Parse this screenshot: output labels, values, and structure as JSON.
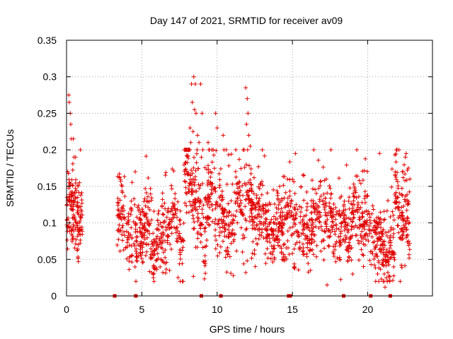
{
  "chart_data": {
    "type": "scatter",
    "title": "Day 147 of 2021, SRMTID for receiver av09",
    "xlabel": "GPS time / hours",
    "ylabel": "SRMTID / TECUs",
    "xlim": [
      0,
      24.3
    ],
    "ylim": [
      0,
      0.35
    ],
    "x_ticks": [
      0,
      5,
      10,
      15,
      20
    ],
    "x_tick_labels": [
      "0",
      "5",
      "10",
      "15",
      "20"
    ],
    "y_ticks": [
      0,
      0.05,
      0.1,
      0.15,
      0.2,
      0.25,
      0.3,
      0.35
    ],
    "y_tick_labels": [
      "0",
      "0.05",
      "0.1",
      "0.15",
      "0.2",
      "0.25",
      "0.3",
      "0.35"
    ],
    "grid": true,
    "marker": "+",
    "colors": {
      "points": "#e00000",
      "axis": "#000000",
      "grid": "#a0a0a0"
    },
    "series": [
      {
        "name": "SRMTID",
        "segments": [
          {
            "start": 0.0,
            "end": 1.05,
            "baseline": 0.1,
            "amplitude": 0.02,
            "spread": 0.025,
            "density": 140
          },
          {
            "start": 3.35,
            "end": 5.0,
            "baseline": 0.095,
            "amplitude": 0.015,
            "spread": 0.025,
            "density": 90
          },
          {
            "start": 5.0,
            "end": 7.8,
            "baseline": 0.085,
            "amplitude": 0.02,
            "spread": 0.025,
            "density": 90
          },
          {
            "start": 7.8,
            "end": 9.3,
            "baseline": 0.14,
            "amplitude": 0.03,
            "spread": 0.035,
            "density": 100
          },
          {
            "start": 9.3,
            "end": 12.5,
            "baseline": 0.115,
            "amplitude": 0.02,
            "spread": 0.03,
            "density": 90
          },
          {
            "start": 12.5,
            "end": 17.5,
            "baseline": 0.095,
            "amplitude": 0.015,
            "spread": 0.025,
            "density": 90
          },
          {
            "start": 17.5,
            "end": 20.5,
            "baseline": 0.1,
            "amplitude": 0.015,
            "spread": 0.025,
            "density": 90
          },
          {
            "start": 20.5,
            "end": 21.8,
            "baseline": 0.07,
            "amplitude": 0.015,
            "spread": 0.025,
            "density": 110
          },
          {
            "start": 21.8,
            "end": 22.8,
            "baseline": 0.11,
            "amplitude": 0.025,
            "spread": 0.03,
            "density": 110
          }
        ],
        "peaks": [
          {
            "x": 0.15,
            "y": 0.275
          },
          {
            "x": 0.18,
            "y": 0.265
          },
          {
            "x": 0.25,
            "y": 0.25
          },
          {
            "x": 0.28,
            "y": 0.235
          },
          {
            "x": 0.32,
            "y": 0.215
          },
          {
            "x": 0.45,
            "y": 0.215
          },
          {
            "x": 0.5,
            "y": 0.19
          },
          {
            "x": 0.6,
            "y": 0.19
          },
          {
            "x": 0.08,
            "y": 0.17
          },
          {
            "x": 8.3,
            "y": 0.29
          },
          {
            "x": 8.45,
            "y": 0.3
          },
          {
            "x": 8.55,
            "y": 0.29
          },
          {
            "x": 8.9,
            "y": 0.29
          },
          {
            "x": 8.35,
            "y": 0.265
          },
          {
            "x": 8.5,
            "y": 0.255
          },
          {
            "x": 8.6,
            "y": 0.25
          },
          {
            "x": 8.2,
            "y": 0.23
          },
          {
            "x": 8.4,
            "y": 0.225
          },
          {
            "x": 8.7,
            "y": 0.22
          },
          {
            "x": 8.25,
            "y": 0.21
          },
          {
            "x": 8.8,
            "y": 0.21
          },
          {
            "x": 9.0,
            "y": 0.25
          },
          {
            "x": 9.4,
            "y": 0.21
          },
          {
            "x": 9.9,
            "y": 0.25
          },
          {
            "x": 10.0,
            "y": 0.23
          },
          {
            "x": 10.4,
            "y": 0.22
          },
          {
            "x": 10.6,
            "y": 0.2
          },
          {
            "x": 11.9,
            "y": 0.285
          },
          {
            "x": 12.0,
            "y": 0.27
          },
          {
            "x": 12.05,
            "y": 0.25
          },
          {
            "x": 11.95,
            "y": 0.235
          },
          {
            "x": 12.1,
            "y": 0.22
          },
          {
            "x": 11.8,
            "y": 0.2
          },
          {
            "x": 12.2,
            "y": 0.205
          },
          {
            "x": 13.0,
            "y": 0.2
          },
          {
            "x": 15.2,
            "y": 0.195
          },
          {
            "x": 22.55,
            "y": 0.195
          },
          {
            "x": 22.5,
            "y": 0.19
          },
          {
            "x": 22.7,
            "y": 0.175
          },
          {
            "x": 22.8,
            "y": 0.16
          }
        ],
        "lows": [
          {
            "x": 17.3,
            "y": 0.015
          },
          {
            "x": 21.15,
            "y": 0.012
          },
          {
            "x": 21.3,
            "y": 0.02
          },
          {
            "x": 21.1,
            "y": 0.03
          },
          {
            "x": 19.0,
            "y": 0.03
          },
          {
            "x": 6.4,
            "y": 0.032
          },
          {
            "x": 11.9,
            "y": 0.032
          },
          {
            "x": 16.2,
            "y": 0.035
          }
        ],
        "zero_markers": [
          3.2,
          4.6,
          8.95,
          10.25,
          14.75,
          14.85,
          18.4,
          20.2,
          21.5
        ]
      }
    ]
  }
}
